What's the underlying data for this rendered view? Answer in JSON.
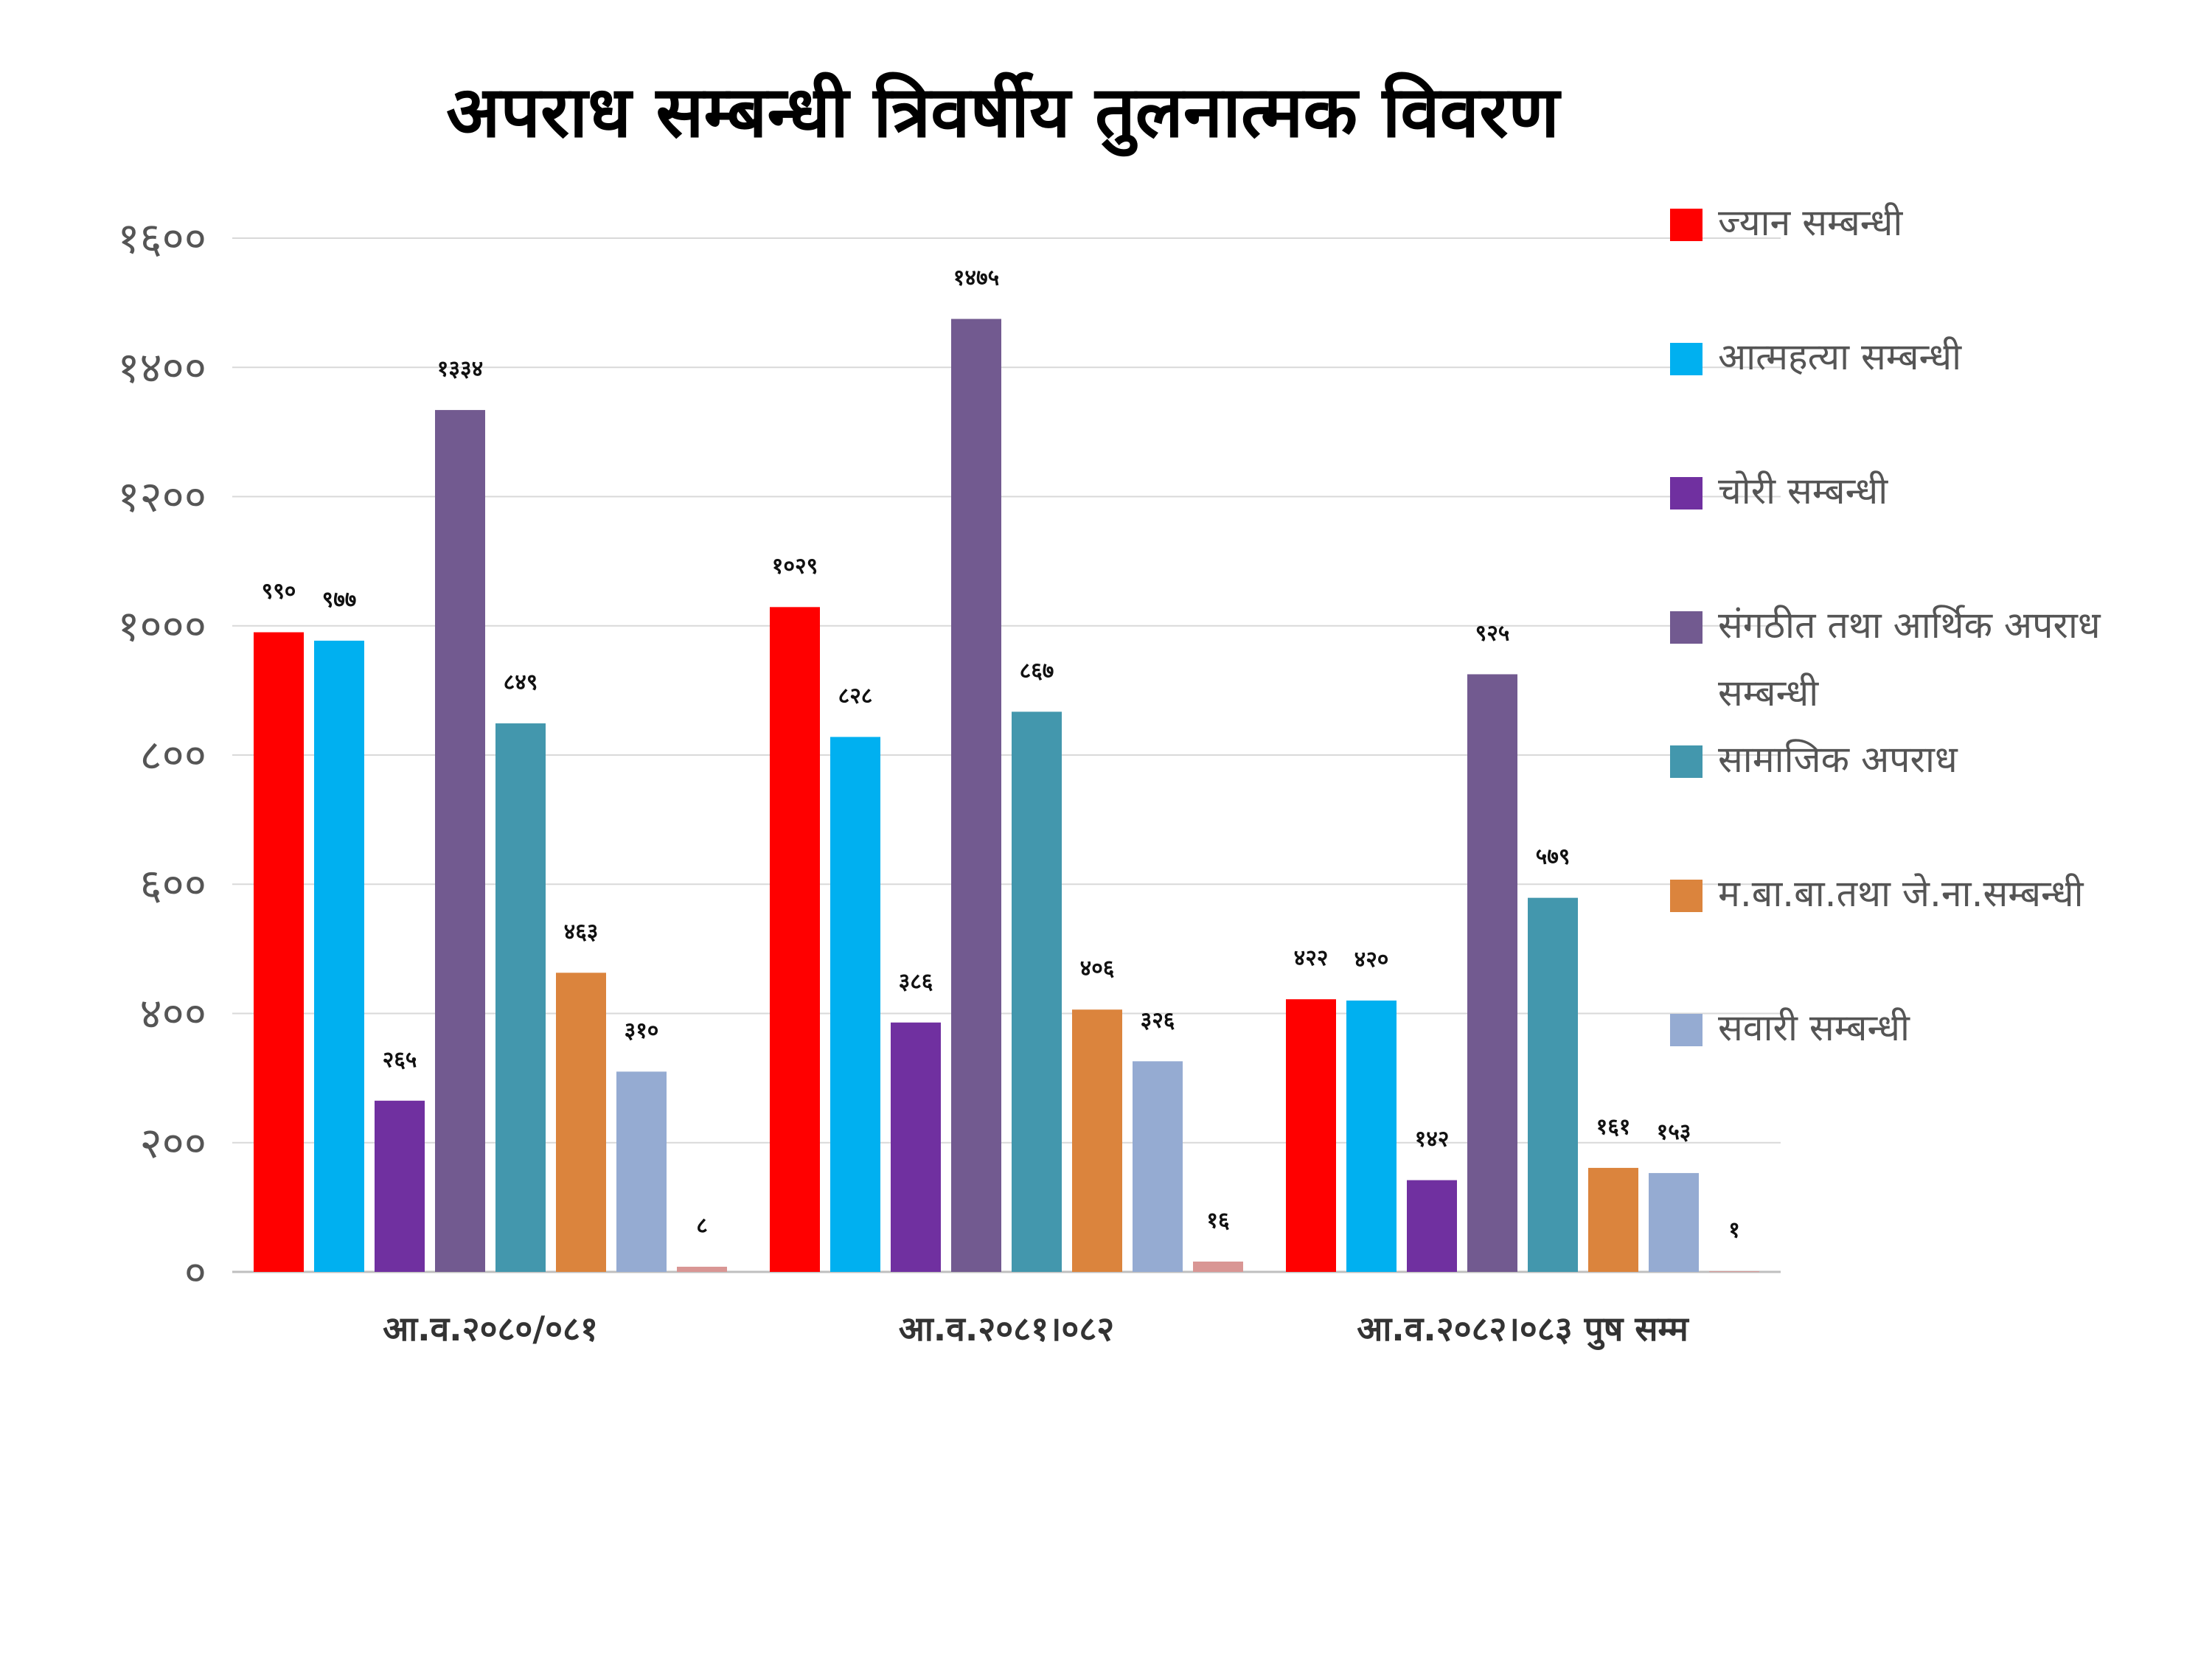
{
  "chart_data": {
    "type": "bar",
    "title": "अपराध सम्बन्धी त्रिवर्षीय तुलनात्मक विवरण",
    "categories": [
      "आ.व.२०८०/०८१",
      "आ.व.२०८१।०८२",
      "आ.व.२०८२।०८३ पुष सम्म"
    ],
    "ylim": [
      0,
      1600
    ],
    "yticks": [
      0,
      200,
      400,
      600,
      800,
      1000,
      1200,
      1400,
      1600
    ],
    "ytick_labels": [
      "०",
      "२००",
      "४००",
      "६००",
      "८००",
      "१०००",
      "१२००",
      "१४००",
      "१६००"
    ],
    "grid": true,
    "legend_position": "right",
    "series": [
      {
        "name": "ज्यान सम्बन्धी",
        "color": "#ff0000",
        "values": [
          990,
          1029,
          422
        ],
        "labels": [
          "९९०",
          "१०२९",
          "४२२"
        ]
      },
      {
        "name": "आत्महत्या सम्बन्धी",
        "color": "#00b0f0",
        "values": [
          977,
          828,
          420
        ],
        "labels": [
          "९७७",
          "८२८",
          "४२०"
        ]
      },
      {
        "name": "चोरी सम्बन्धी",
        "color": "#7030a0",
        "values": [
          265,
          386,
          142
        ],
        "labels": [
          "२६५",
          "३८६",
          "१४२"
        ]
      },
      {
        "name": "संगठीत तथा आर्थिक अपराध सम्बन्धी",
        "color": "#725a90",
        "values": [
          1334,
          1475,
          925
        ],
        "labels": [
          "१३३४",
          "१४७५",
          "९२५"
        ]
      },
      {
        "name": "सामाजिक अपराध",
        "color": "#4397ad",
        "values": [
          849,
          867,
          579
        ],
        "labels": [
          "८४९",
          "८६७",
          "५७९"
        ]
      },
      {
        "name": "म.बा.बा.तथा जे.ना.सम्बन्धी",
        "color": "#db843d",
        "values": [
          463,
          406,
          161
        ],
        "labels": [
          "४६३",
          "४०६",
          "१६१"
        ]
      },
      {
        "name": "सवारी सम्बन्धी",
        "color": "#95abd2",
        "values": [
          310,
          326,
          153
        ],
        "labels": [
          "३१०",
          "३२६",
          "१५३"
        ]
      },
      {
        "name": "",
        "color": "#d99694",
        "values": [
          8,
          16,
          1
        ],
        "labels": [
          "८",
          "१६",
          "१"
        ]
      }
    ]
  }
}
